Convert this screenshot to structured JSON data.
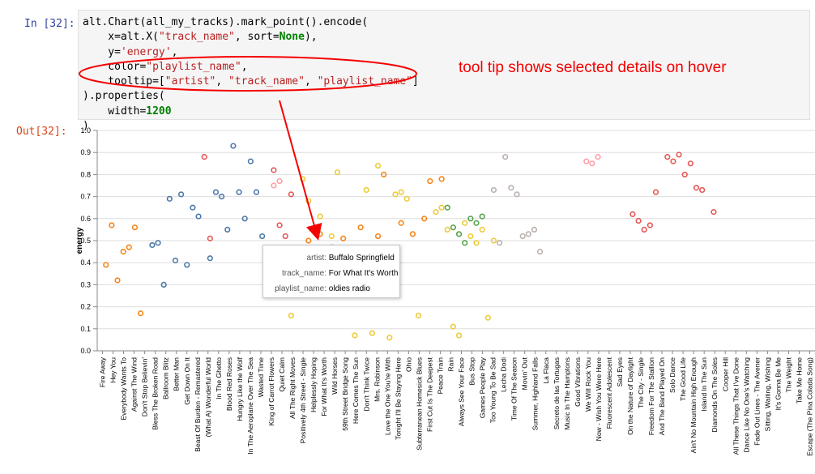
{
  "notebook": {
    "in_prompt": "In [32]:",
    "out_prompt": "Out[32]:",
    "code_lines": [
      [
        {
          "t": "alt.Chart(all_my_tracks).mark_point().encode(",
          "c": ""
        }
      ],
      [
        {
          "t": "    x=",
          "c": ""
        },
        {
          "t": "alt.X(",
          "c": ""
        },
        {
          "t": "\"track_name\"",
          "c": "str"
        },
        {
          "t": ", sort=",
          "c": ""
        },
        {
          "t": "None",
          "c": "kw"
        },
        {
          "t": "),",
          "c": ""
        }
      ],
      [
        {
          "t": "    y=",
          "c": ""
        },
        {
          "t": "'energy'",
          "c": "str"
        },
        {
          "t": ",",
          "c": ""
        }
      ],
      [
        {
          "t": "    color=",
          "c": ""
        },
        {
          "t": "\"playlist_name\"",
          "c": "str"
        },
        {
          "t": ",",
          "c": ""
        }
      ],
      [
        {
          "t": "    tooltip=[",
          "c": ""
        },
        {
          "t": "\"artist\"",
          "c": "str"
        },
        {
          "t": ", ",
          "c": ""
        },
        {
          "t": "\"track_name\"",
          "c": "str"
        },
        {
          "t": ", ",
          "c": ""
        },
        {
          "t": "\"playlist_name\"",
          "c": "str"
        },
        {
          "t": "]",
          "c": ""
        }
      ],
      [
        {
          "t": ").properties(",
          "c": ""
        }
      ],
      [
        {
          "t": "    width=",
          "c": ""
        },
        {
          "t": "1200",
          "c": "kw"
        }
      ],
      [
        {
          "t": ")",
          "c": ""
        }
      ]
    ],
    "annotation": "tool tip shows selected details on hover"
  },
  "tooltip": {
    "rows": [
      {
        "key": "artist:",
        "value": "Buffalo Springfield"
      },
      {
        "key": "track_name:",
        "value": "For What It's Worth"
      },
      {
        "key": "playlist_name:",
        "value": "oldies radio"
      }
    ]
  },
  "colors": {
    "blue": "#4c78a8",
    "orange": "#f58518",
    "red": "#e45756",
    "yellow": "#eeca3b",
    "green": "#54a24b",
    "pink": "#ff9da6",
    "gray": "#bab0ac",
    "annotation": "#f50000"
  },
  "chart_data": {
    "type": "scatter",
    "ylabel": "energy",
    "ylim": [
      0,
      1
    ],
    "yticks": [
      "0.0",
      "0.1",
      "0.2",
      "0.3",
      "0.4",
      "0.5",
      "0.6",
      "0.7",
      "0.8",
      "0.9",
      "1.0"
    ],
    "grid": true,
    "xlabels": [
      "Fire Away",
      "Hey You",
      "Everybody Wants To",
      "Against The Wind",
      "Don't Stop Believin'",
      "Bless The Broken Road",
      "Ballroom Blitz",
      "Better Man",
      "Get Down On It",
      "Beast Of Burden - Remastered",
      "(What A) Wonderful World",
      "In The Ghetto",
      "Blood Red Roses",
      "Hungry Like the Wolf",
      "In The Aeroplane Over The Sea",
      "Wasted Time",
      "King of Carrot Flowers",
      "Quiet Calm",
      "All The Right Moves",
      "Positively 4th Street - Single",
      "Helplessly Hoping",
      "For What It's Worth",
      "Wild Horses",
      "59th Street Bridge Song",
      "Here Comes The Sun",
      "Don't Think Twice",
      "Mrs. Robinson",
      "Love the One You're With",
      "Tonight I'll Be Staying Here",
      "Ohio",
      "Subterranean Homesick Blues",
      "First Cut Is The Deepest",
      "Peace Train",
      "Rain",
      "Always See Your Face",
      "Bus Stop",
      "Games People Play",
      "Too Young To Be Sad",
      "Lecha Dodi",
      "Time Of The Season",
      "Movin' Out",
      "Summer, Highland Falls",
      "La Flaca",
      "Secreto de las Tortugas",
      "Music In The Hamptons",
      "Good Vibrations",
      "We Will Rock You",
      "Now - Wish You Were Here",
      "Fluorescent Adolescent",
      "Sad Eyes",
      "On the Nature of Daylight",
      "The City - Single",
      "Freedom For The Stallion",
      "And The Band Played On",
      "Solo Dance",
      "The Good Life",
      "Ain't No Mountain High Enough",
      "Island In The Sun",
      "Diamonds On The Soles",
      "Cooper Hill",
      "All These Things That I've Done",
      "Dance Like No One's Watching",
      "Fade Out Lines - The Avener",
      "Sitting, Waiting, Wishing",
      "It's Gonna Be Me",
      "The Weight",
      "Take Me Home",
      "Escape (The Pina Colada Song)"
    ],
    "series": [
      {
        "name": "blue",
        "points": [
          [
            9,
            0.48
          ],
          [
            10,
            0.49
          ],
          [
            11,
            0.3
          ],
          [
            12,
            0.69
          ],
          [
            13,
            0.41
          ],
          [
            14,
            0.71
          ],
          [
            15,
            0.39
          ],
          [
            16,
            0.65
          ],
          [
            17,
            0.61
          ],
          [
            19,
            0.42
          ],
          [
            20,
            0.72
          ],
          [
            21,
            0.7
          ],
          [
            22,
            0.55
          ],
          [
            23,
            0.93
          ],
          [
            24,
            0.72
          ],
          [
            25,
            0.6
          ],
          [
            26,
            0.86
          ],
          [
            27,
            0.72
          ],
          [
            28,
            0.52
          ]
        ]
      },
      {
        "name": "orange",
        "points": [
          [
            1,
            0.39
          ],
          [
            2,
            0.57
          ],
          [
            3,
            0.32
          ],
          [
            4,
            0.45
          ],
          [
            5,
            0.47
          ],
          [
            6,
            0.56
          ],
          [
            7,
            0.17
          ],
          [
            34,
            0.42
          ],
          [
            36,
            0.5
          ],
          [
            37,
            0.44
          ],
          [
            38,
            0.53
          ],
          [
            40,
            0.47
          ],
          [
            42,
            0.51
          ],
          [
            45,
            0.56
          ],
          [
            48,
            0.52
          ],
          [
            49,
            0.8
          ],
          [
            52,
            0.58
          ],
          [
            54,
            0.53
          ],
          [
            56,
            0.6
          ],
          [
            57,
            0.77
          ],
          [
            59,
            0.78
          ]
        ]
      },
      {
        "name": "red",
        "points": [
          [
            18,
            0.88
          ],
          [
            19,
            0.51
          ],
          [
            30,
            0.82
          ],
          [
            31,
            0.57
          ],
          [
            32,
            0.52
          ],
          [
            33,
            0.71
          ],
          [
            92,
            0.62
          ],
          [
            93,
            0.59
          ],
          [
            94,
            0.55
          ],
          [
            95,
            0.57
          ],
          [
            96,
            0.72
          ],
          [
            98,
            0.88
          ],
          [
            99,
            0.86
          ],
          [
            100,
            0.89
          ],
          [
            101,
            0.8
          ],
          [
            102,
            0.85
          ],
          [
            103,
            0.74
          ],
          [
            104,
            0.73
          ],
          [
            106,
            0.63
          ]
        ]
      },
      {
        "name": "yellow",
        "points": [
          [
            33,
            0.16
          ],
          [
            35,
            0.78
          ],
          [
            36,
            0.68
          ],
          [
            38,
            0.61
          ],
          [
            40,
            0.52
          ],
          [
            41,
            0.81
          ],
          [
            44,
            0.07
          ],
          [
            46,
            0.73
          ],
          [
            47,
            0.08
          ],
          [
            48,
            0.84
          ],
          [
            50,
            0.06
          ],
          [
            51,
            0.71
          ],
          [
            52,
            0.72
          ],
          [
            53,
            0.69
          ],
          [
            55,
            0.16
          ],
          [
            58,
            0.63
          ],
          [
            59,
            0.65
          ],
          [
            60,
            0.55
          ],
          [
            61,
            0.11
          ],
          [
            62,
            0.07
          ],
          [
            63,
            0.58
          ],
          [
            64,
            0.52
          ],
          [
            65,
            0.49
          ],
          [
            66,
            0.55
          ],
          [
            67,
            0.15
          ],
          [
            68,
            0.5
          ]
        ]
      },
      {
        "name": "pink",
        "points": [
          [
            29,
            0.37
          ],
          [
            30,
            0.75
          ],
          [
            31,
            0.77
          ],
          [
            84,
            0.86
          ],
          [
            85,
            0.85
          ],
          [
            86,
            0.88
          ]
        ]
      },
      {
        "name": "green",
        "points": [
          [
            60,
            0.65
          ],
          [
            61,
            0.56
          ],
          [
            62,
            0.53
          ],
          [
            63,
            0.49
          ],
          [
            64,
            0.6
          ],
          [
            65,
            0.58
          ],
          [
            66,
            0.61
          ]
        ]
      },
      {
        "name": "gray",
        "points": [
          [
            68,
            0.73
          ],
          [
            69,
            0.49
          ],
          [
            70,
            0.88
          ],
          [
            71,
            0.74
          ],
          [
            72,
            0.71
          ],
          [
            73,
            0.52
          ],
          [
            74,
            0.53
          ],
          [
            75,
            0.55
          ],
          [
            76,
            0.45
          ]
        ]
      }
    ]
  }
}
